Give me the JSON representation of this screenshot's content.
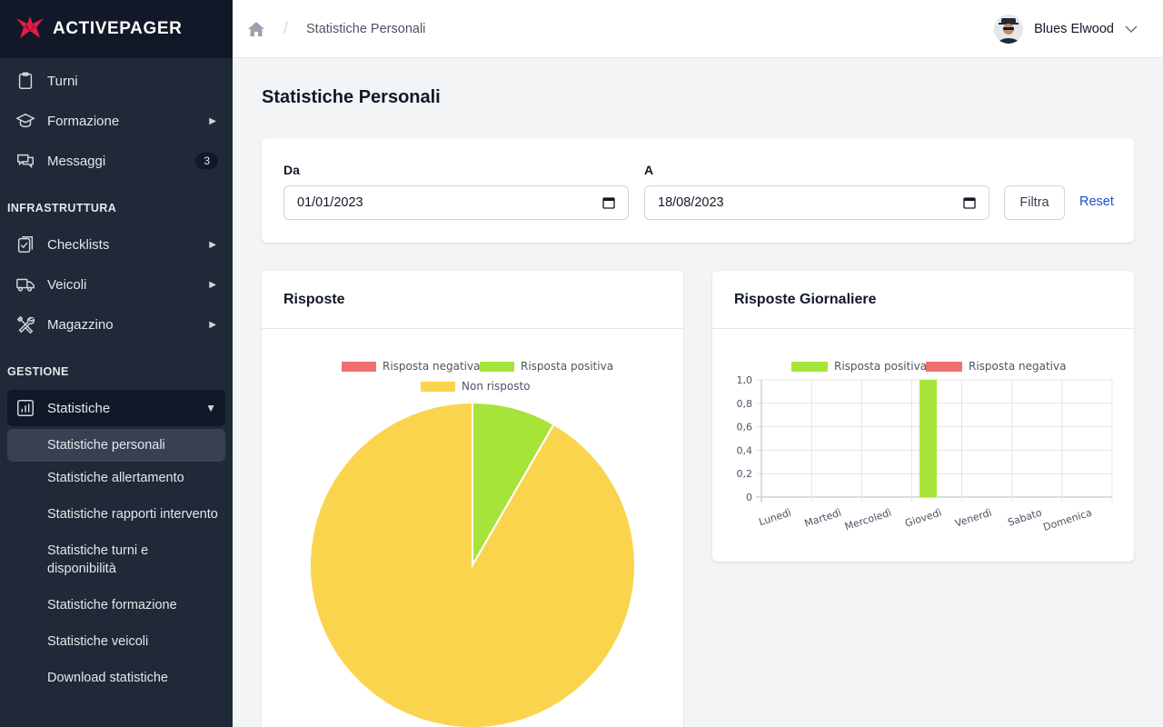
{
  "brand": {
    "name": "ACTIVEPAGER",
    "color": "#e11d48"
  },
  "sidebar": {
    "top_items": [
      {
        "label": "Turni",
        "icon": "clipboard-icon"
      },
      {
        "label": "Formazione",
        "icon": "graduation-cap-icon",
        "has_submenu": true
      },
      {
        "label": "Messaggi",
        "icon": "chat-icon",
        "badge": "3"
      }
    ],
    "infrastructure_title": "INFRASTRUTTURA",
    "infrastructure_items": [
      {
        "label": "Checklists",
        "icon": "checklist-icon",
        "has_submenu": true
      },
      {
        "label": "Veicoli",
        "icon": "truck-icon",
        "has_submenu": true
      },
      {
        "label": "Magazzino",
        "icon": "tools-icon",
        "has_submenu": true
      }
    ],
    "management_title": "GESTIONE",
    "statistics": {
      "label": "Statistiche",
      "icon": "bar-chart-icon",
      "expanded": true
    },
    "statistics_sub": [
      "Statistiche personali",
      "Statistiche allertamento",
      "Statistiche rapporti intervento",
      "Statistiche turni e disponibilità",
      "Statistiche formazione",
      "Statistiche veicoli",
      "Download statistiche"
    ]
  },
  "topbar": {
    "breadcrumb": "Statistiche Personali",
    "user_name": "Blues Elwood"
  },
  "main": {
    "page_title": "Statistiche Personali",
    "filter": {
      "from_label": "Da",
      "from_value": "01/01/2023",
      "to_label": "A",
      "to_value": "18/08/2023",
      "filter_button": "Filtra",
      "reset_link": "Reset"
    },
    "responses_card_title": "Risposte",
    "daily_card_title": "Risposte Giornaliere"
  },
  "chart_data": [
    {
      "type": "pie",
      "title": "Risposte",
      "legend": [
        "Risposta negativa",
        "Risposta positiva",
        "Non risposto"
      ],
      "labels": [
        "Risposta negativa",
        "Risposta positiva",
        "Non risposto"
      ],
      "values": [
        0,
        1,
        11
      ],
      "colors": [
        "#f07070",
        "#a6e43a",
        "#fbd44e"
      ]
    },
    {
      "type": "bar",
      "title": "Risposte Giornaliere",
      "categories": [
        "Lunedì",
        "Martedì",
        "Mercoledì",
        "Giovedì",
        "Venerdì",
        "Sabato",
        "Domenica"
      ],
      "series": [
        {
          "name": "Risposta positiva",
          "color": "#a6e43a",
          "values": [
            0,
            0,
            0,
            1,
            0,
            0,
            0
          ]
        },
        {
          "name": "Risposta negativa",
          "color": "#f07070",
          "values": [
            0,
            0,
            0,
            0,
            0,
            0,
            0
          ]
        }
      ],
      "ylim": [
        0,
        1
      ],
      "y_ticks": [
        "1,0",
        "0,8",
        "0,6",
        "0,4",
        "0,2",
        "0"
      ],
      "grid": true,
      "legend_position": "top"
    }
  ]
}
